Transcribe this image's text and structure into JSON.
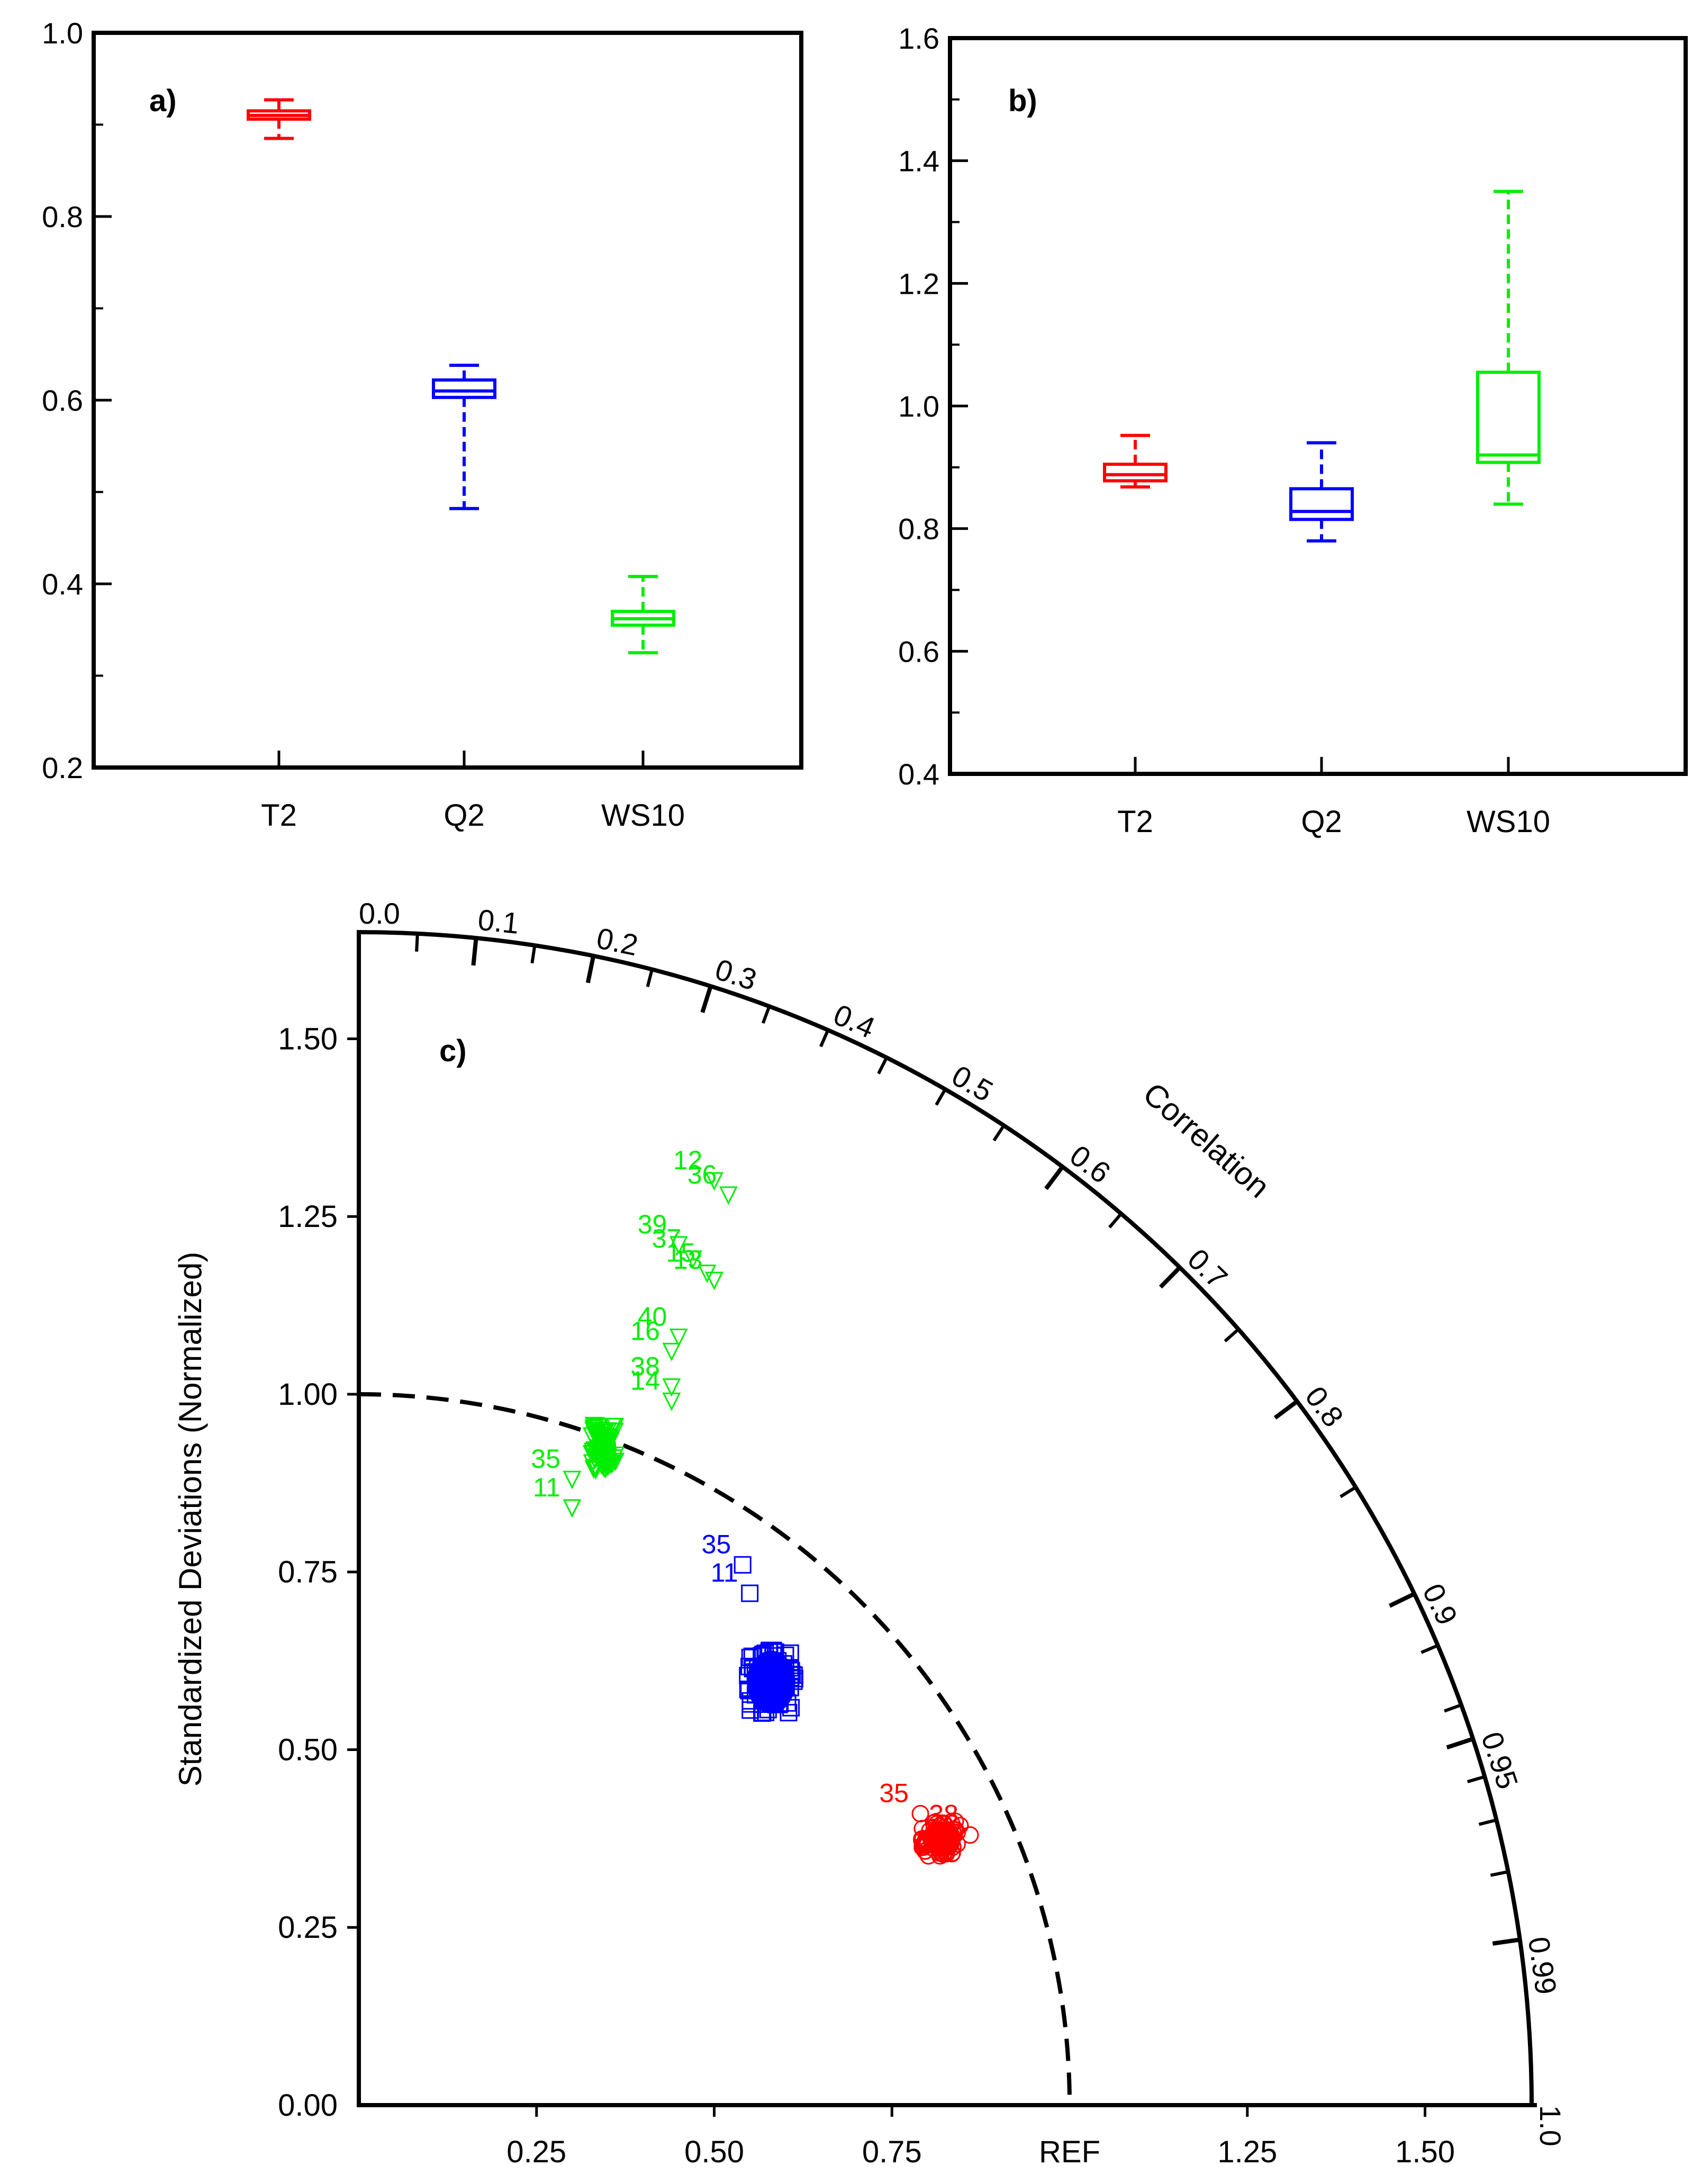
{
  "chart_data": [
    {
      "panel": "a",
      "type": "box",
      "label": "a)",
      "categories": [
        "T2",
        "Q2",
        "WS10"
      ],
      "colors": [
        "#ff0000",
        "#0000ff",
        "#00ee00"
      ],
      "boxes": [
        {
          "min": 0.885,
          "q1": 0.906,
          "median": 0.91,
          "q3": 0.915,
          "max": 0.927
        },
        {
          "min": 0.482,
          "q1": 0.603,
          "median": 0.61,
          "q3": 0.622,
          "max": 0.638
        },
        {
          "min": 0.325,
          "q1": 0.355,
          "median": 0.362,
          "q3": 0.37,
          "max": 0.408
        }
      ],
      "ylim": [
        0.2,
        1.0
      ],
      "ytick_labels": [
        "0.2",
        "0.4",
        "0.6",
        "0.8",
        "1.0"
      ]
    },
    {
      "panel": "b",
      "type": "box",
      "label": "b)",
      "categories": [
        "T2",
        "Q2",
        "WS10"
      ],
      "colors": [
        "#ff0000",
        "#0000ff",
        "#00ee00"
      ],
      "boxes": [
        {
          "min": 0.868,
          "q1": 0.878,
          "median": 0.888,
          "q3": 0.905,
          "max": 0.952
        },
        {
          "min": 0.78,
          "q1": 0.815,
          "median": 0.828,
          "q3": 0.865,
          "max": 0.94
        },
        {
          "min": 0.84,
          "q1": 0.908,
          "median": 0.92,
          "q3": 1.055,
          "max": 1.35
        }
      ],
      "ylim": [
        0.4,
        1.6
      ],
      "ytick_labels": [
        "0.4",
        "0.6",
        "0.8",
        "1.0",
        "1.2",
        "1.4",
        "1.6"
      ]
    },
    {
      "panel": "c",
      "type": "scatter",
      "subtype": "taylor-diagram",
      "label": "c)",
      "ylabel": "Standardized Deviations (Normalized)",
      "arc_label": "Correlation",
      "ref_label": "REF",
      "max_std": 1.65,
      "std_tick_values": [
        0.25,
        0.5,
        0.75,
        1.25,
        1.5
      ],
      "x_tick_labels": [
        "0.25",
        "0.50",
        "0.75",
        "1.25",
        "1.50"
      ],
      "y_tick_values": [
        0.0,
        0.25,
        0.5,
        0.75,
        1.0,
        1.25,
        1.5
      ],
      "y_tick_labels": [
        "0.00",
        "0.25",
        "0.50",
        "0.75",
        "1.00",
        "1.25",
        "1.50"
      ],
      "corr_labels": [
        "0.0",
        "0.1",
        "0.2",
        "0.3",
        "0.4",
        "0.5",
        "0.6",
        "0.7",
        "0.8",
        "0.9",
        "0.95",
        "0.99",
        "1.0"
      ],
      "series": [
        {
          "name": "WS10",
          "color": "#00ee00",
          "marker": "triangle-down",
          "points": [
            {
              "id": "12",
              "x": 0.5,
              "y": 1.3
            },
            {
              "id": "36",
              "x": 0.52,
              "y": 1.28
            },
            {
              "id": "39",
              "x": 0.45,
              "y": 1.21
            },
            {
              "id": "37",
              "x": 0.47,
              "y": 1.19
            },
            {
              "id": "15",
              "x": 0.49,
              "y": 1.17
            },
            {
              "id": "13",
              "x": 0.5,
              "y": 1.16
            },
            {
              "id": "40",
              "x": 0.45,
              "y": 1.08
            },
            {
              "id": "16",
              "x": 0.44,
              "y": 1.06
            },
            {
              "id": "38",
              "x": 0.44,
              "y": 1.01
            },
            {
              "id": "14",
              "x": 0.44,
              "y": 0.99
            },
            {
              "id": "35",
              "x": 0.3,
              "y": 0.88
            },
            {
              "id": "11",
              "x": 0.3,
              "y": 0.84
            }
          ],
          "cluster": {
            "x_min": 0.32,
            "x_max": 0.37,
            "y_min": 0.88,
            "y_max": 0.97
          }
        },
        {
          "name": "Q2",
          "color": "#0000ff",
          "marker": "square",
          "points": [
            {
              "id": "35",
              "x": 0.54,
              "y": 0.76
            },
            {
              "id": "11",
              "x": 0.55,
              "y": 0.72
            }
          ],
          "cluster": {
            "x_min": 0.53,
            "x_max": 0.63,
            "y_min": 0.53,
            "y_max": 0.66
          }
        },
        {
          "name": "T2",
          "color": "#ff0000",
          "marker": "circle",
          "points": [
            {
              "id": "35",
              "x": 0.79,
              "y": 0.41
            },
            {
              "id": "38",
              "x": 0.86,
              "y": 0.38
            }
          ],
          "cluster": {
            "x_min": 0.78,
            "x_max": 0.86,
            "y_min": 0.34,
            "y_max": 0.41
          }
        }
      ]
    }
  ]
}
